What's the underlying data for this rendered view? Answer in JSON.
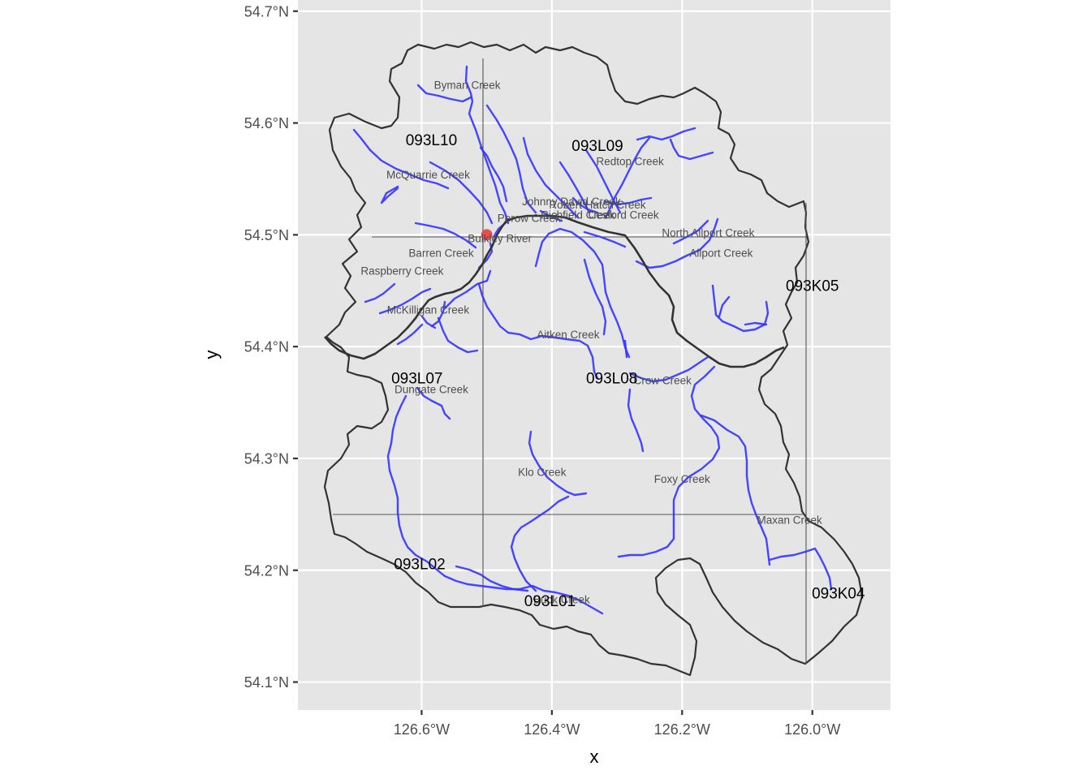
{
  "axes": {
    "x_title": "x",
    "y_title": "y",
    "x_ticks": [
      "126.6°W",
      "126.4°W",
      "126.2°W",
      "126.0°W"
    ],
    "y_ticks": [
      "54.1°N",
      "54.2°N",
      "54.3°N",
      "54.4°N",
      "54.5°N",
      "54.6°N",
      "54.7°N"
    ]
  },
  "colors": {
    "panel_background": "#e5e5e5",
    "gridline": "#ffffff",
    "streams": "#3333ff",
    "watershed_outline": "#333333",
    "main_river": "#333333",
    "tile_lines": "#555555",
    "point": "#e8474a"
  },
  "chart_data": {
    "type": "map",
    "xlim": [
      -126.79,
      -125.88
    ],
    "ylim": [
      54.075,
      54.71
    ],
    "x_breaks": [
      -126.6,
      -126.4,
      -126.2,
      -126.0
    ],
    "y_breaks": [
      54.1,
      54.2,
      54.3,
      54.4,
      54.5,
      54.6,
      54.7
    ],
    "map_tiles": [
      {
        "label": "093L10",
        "lon": -126.585,
        "lat": 54.585
      },
      {
        "label": "093L09",
        "lon": -126.33,
        "lat": 54.58
      },
      {
        "label": "093K05",
        "lon": -126.0,
        "lat": 54.455
      },
      {
        "label": "093L07",
        "lon": -126.607,
        "lat": 54.372
      },
      {
        "label": "093L08",
        "lon": -126.308,
        "lat": 54.372
      },
      {
        "label": "093L02",
        "lon": -126.603,
        "lat": 54.206
      },
      {
        "label": "093L01",
        "lon": -126.403,
        "lat": 54.173
      },
      {
        "label": "093K04",
        "lon": -125.96,
        "lat": 54.18
      }
    ],
    "tile_boundaries": {
      "longitudes": [
        -126.5,
        -126.0
      ],
      "latitudes": [
        54.5,
        54.25
      ]
    },
    "point": {
      "label": "Bulkley River",
      "lon": -126.5,
      "lat": 54.5
    },
    "streams": [
      {
        "name": "Byman Creek",
        "lon": -126.53,
        "lat": 54.634
      },
      {
        "name": "Redtop Creek",
        "lon": -126.28,
        "lat": 54.566
      },
      {
        "name": "McQuarrie Creek",
        "lon": -126.59,
        "lat": 54.554
      },
      {
        "name": "Johnny David Creek",
        "lon": -126.37,
        "lat": 54.53
      },
      {
        "name": "Robert Hatch Creek",
        "lon": -126.33,
        "lat": 54.527
      },
      {
        "name": "Richfield Creek",
        "lon": -126.36,
        "lat": 54.518
      },
      {
        "name": "Cesford Creek",
        "lon": -126.29,
        "lat": 54.518
      },
      {
        "name": "Perow Creek",
        "lon": -126.435,
        "lat": 54.515
      },
      {
        "name": "North Allport Creek",
        "lon": -126.16,
        "lat": 54.502
      },
      {
        "name": "Bulkley River",
        "lon": -126.48,
        "lat": 54.497
      },
      {
        "name": "Barren Creek",
        "lon": -126.57,
        "lat": 54.484
      },
      {
        "name": "Allport Creek",
        "lon": -126.14,
        "lat": 54.484
      },
      {
        "name": "Raspberry Creek",
        "lon": -126.63,
        "lat": 54.468
      },
      {
        "name": "McKilligan Creek",
        "lon": -126.59,
        "lat": 54.433
      },
      {
        "name": "Aitken Creek",
        "lon": -126.375,
        "lat": 54.411
      },
      {
        "name": "Crow Creek",
        "lon": -126.23,
        "lat": 54.37
      },
      {
        "name": "Dungate Creek",
        "lon": -126.585,
        "lat": 54.362
      },
      {
        "name": "Klo Creek",
        "lon": -126.415,
        "lat": 54.288
      },
      {
        "name": "Foxy Creek",
        "lon": -126.2,
        "lat": 54.282
      },
      {
        "name": "Maxan Creek",
        "lon": -126.035,
        "lat": 54.245
      },
      {
        "name": "Buck Creek",
        "lon": -126.385,
        "lat": 54.174
      }
    ]
  }
}
